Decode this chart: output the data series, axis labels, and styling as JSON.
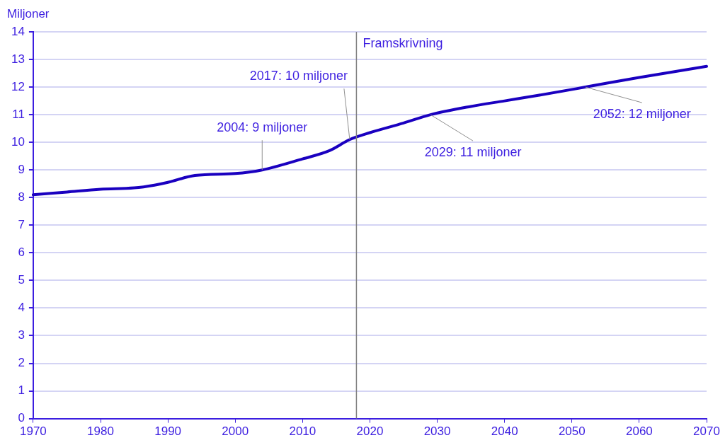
{
  "chart_data": {
    "type": "line",
    "ylabel": "Miljoner",
    "x": [
      1970,
      1975,
      1980,
      1985,
      1988,
      1990,
      1994,
      2000,
      2004,
      2010,
      2014,
      2017,
      2020,
      2025,
      2029,
      2035,
      2040,
      2045,
      2052,
      2060,
      2070
    ],
    "values": [
      8.1,
      8.2,
      8.3,
      8.35,
      8.45,
      8.55,
      8.8,
      8.87,
      9.0,
      9.4,
      9.7,
      10.1,
      10.35,
      10.7,
      11.0,
      11.3,
      11.5,
      11.7,
      12.0,
      12.35,
      12.75
    ],
    "color": "#1a00c0",
    "xlim": [
      1970,
      2070
    ],
    "xticks": [
      1970,
      1980,
      1990,
      2000,
      2010,
      2020,
      2030,
      2040,
      2050,
      2060,
      2070
    ],
    "ylim": [
      0,
      14
    ],
    "yticks": [
      0,
      1,
      2,
      3,
      4,
      5,
      6,
      7,
      8,
      9,
      10,
      11,
      12,
      13,
      14
    ],
    "grid": "y",
    "legend": false,
    "marker": "none",
    "line_style": "solid",
    "ref_lines": [
      {
        "axis": "x",
        "value": 2018,
        "label": "Framskrivning",
        "color": "#808080"
      }
    ],
    "annotations": [
      {
        "text": "2004: 9 miljoner",
        "x": 2004,
        "y": 9.0
      },
      {
        "text": "2017: 10 miljoner",
        "x": 2017,
        "y": 10.1
      },
      {
        "text": "2029: 11 miljoner",
        "x": 2029,
        "y": 11.0
      },
      {
        "text": "2052: 12 miljoner",
        "x": 2052,
        "y": 12.0
      }
    ]
  }
}
